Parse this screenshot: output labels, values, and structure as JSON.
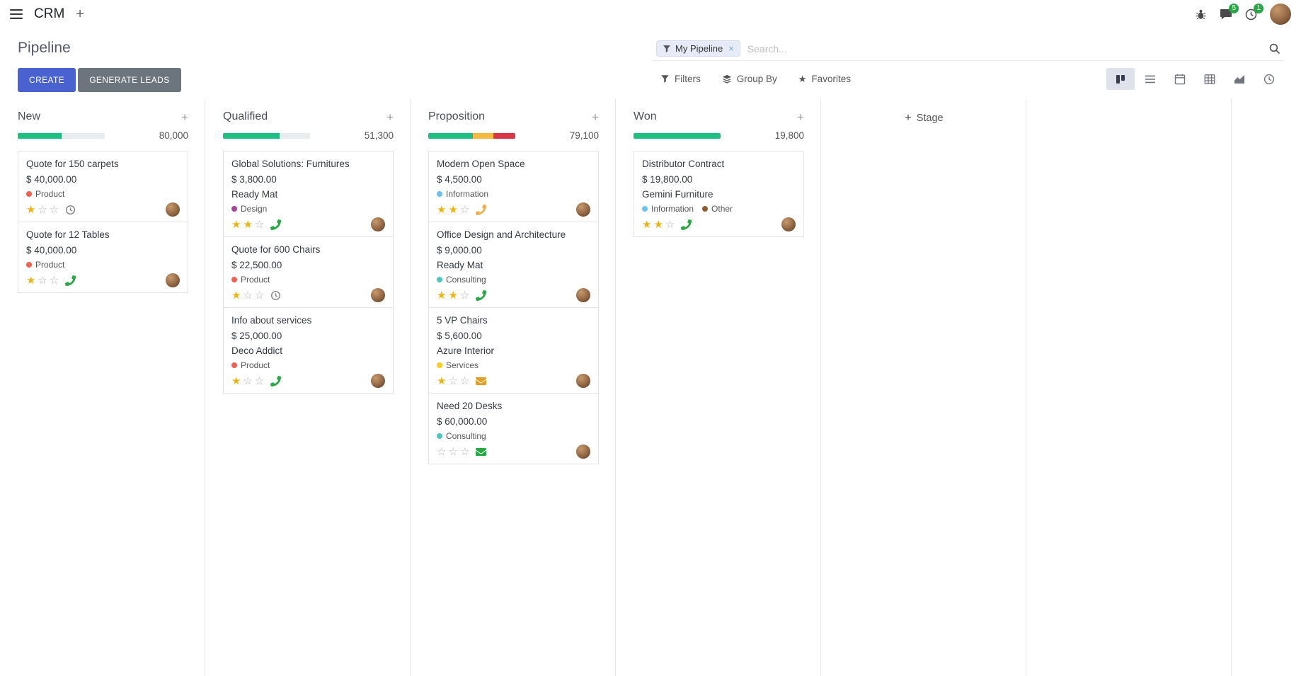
{
  "icons": {
    "plus": "+",
    "close": "×",
    "star_filled": "★",
    "star_empty": "☆"
  },
  "colors": {
    "primary_button": "#4a62cf",
    "secondary_button": "#6c757d",
    "progress_green": "#1fbe83",
    "progress_yellow": "#f5b93f",
    "progress_red": "#dc3545",
    "badge_green": "#28a745",
    "star_gold": "#efb30e"
  },
  "navbar": {
    "app_name": "CRM",
    "message_badge": "5",
    "activity_badge": "1"
  },
  "control_panel": {
    "title": "Pipeline",
    "create_label": "CREATE",
    "generate_leads_label": "GENERATE LEADS",
    "search": {
      "facet_label": "My Pipeline",
      "placeholder": "Search..."
    },
    "filters_label": "Filters",
    "group_by_label": "Group By",
    "favorites_label": "Favorites"
  },
  "board": {
    "add_stage_label": "Stage",
    "columns": [
      {
        "title": "New",
        "total": "80,000",
        "progress": [
          {
            "color": "#1fbe83",
            "pct": 50
          }
        ],
        "cards": [
          {
            "title": "Quote for 150 carpets",
            "amount": "$ 40,000.00",
            "tags": [
              {
                "label": "Product",
                "color": "#f06050"
              }
            ],
            "stars": 1,
            "activity": {
              "type": "clock",
              "color": "#8a8a8a"
            }
          },
          {
            "title": "Quote for 12 Tables",
            "amount": "$ 40,000.00",
            "tags": [
              {
                "label": "Product",
                "color": "#f06050"
              }
            ],
            "stars": 1,
            "activity": {
              "type": "phone",
              "color": "#28a745"
            }
          }
        ]
      },
      {
        "title": "Qualified",
        "total": "51,300",
        "progress": [
          {
            "color": "#1fbe83",
            "pct": 65
          }
        ],
        "cards": [
          {
            "title": "Global Solutions: Furnitures",
            "amount": "$ 3,800.00",
            "company": "Ready Mat",
            "tags": [
              {
                "label": "Design",
                "color": "#a8449a"
              }
            ],
            "stars": 2,
            "activity": {
              "type": "phone",
              "color": "#28a745"
            }
          },
          {
            "title": "Quote for 600 Chairs",
            "amount": "$ 22,500.00",
            "tags": [
              {
                "label": "Product",
                "color": "#f06050"
              }
            ],
            "stars": 1,
            "activity": {
              "type": "clock",
              "color": "#8a8a8a"
            }
          },
          {
            "title": "Info about services",
            "amount": "$ 25,000.00",
            "company": "Deco Addict",
            "tags": [
              {
                "label": "Product",
                "color": "#f06050"
              }
            ],
            "stars": 1,
            "activity": {
              "type": "phone",
              "color": "#28a745"
            }
          }
        ]
      },
      {
        "title": "Proposition",
        "total": "79,100",
        "progress": [
          {
            "color": "#1fbe83",
            "pct": 51
          },
          {
            "color": "#f5b93f",
            "pct": 24
          },
          {
            "color": "#dc3545",
            "pct": 25
          }
        ],
        "cards": [
          {
            "title": "Modern Open Space",
            "amount": "$ 4,500.00",
            "tags": [
              {
                "label": "Information",
                "color": "#6cc1ed"
              }
            ],
            "stars": 2,
            "activity": {
              "type": "phone",
              "color": "#f0ad4e"
            }
          },
          {
            "title": "Office Design and Architecture",
            "amount": "$ 9,000.00",
            "company": "Ready Mat",
            "tags": [
              {
                "label": "Consulting",
                "color": "#4fc5c0"
              }
            ],
            "stars": 2,
            "activity": {
              "type": "phone",
              "color": "#28a745"
            }
          },
          {
            "title": "5 VP Chairs",
            "amount": "$ 5,600.00",
            "company": "Azure Interior",
            "tags": [
              {
                "label": "Services",
                "color": "#f7cd1f"
              }
            ],
            "stars": 1,
            "activity": {
              "type": "envelope",
              "color": "#dfa027"
            }
          },
          {
            "title": "Need 20 Desks",
            "amount": "$ 60,000.00",
            "tags": [
              {
                "label": "Consulting",
                "color": "#4fc5c0"
              }
            ],
            "stars": 0,
            "activity": {
              "type": "envelope",
              "color": "#28a745"
            }
          }
        ]
      },
      {
        "title": "Won",
        "total": "19,800",
        "progress": [
          {
            "color": "#1fbe83",
            "pct": 100
          }
        ],
        "cards": [
          {
            "title": "Distributor Contract",
            "amount": "$ 19,800.00",
            "company": "Gemini Furniture",
            "tags": [
              {
                "label": "Information",
                "color": "#6cc1ed"
              },
              {
                "label": "Other",
                "color": "#8d5c33"
              }
            ],
            "stars": 2,
            "activity": {
              "type": "phone",
              "color": "#28a745"
            }
          }
        ]
      }
    ]
  }
}
